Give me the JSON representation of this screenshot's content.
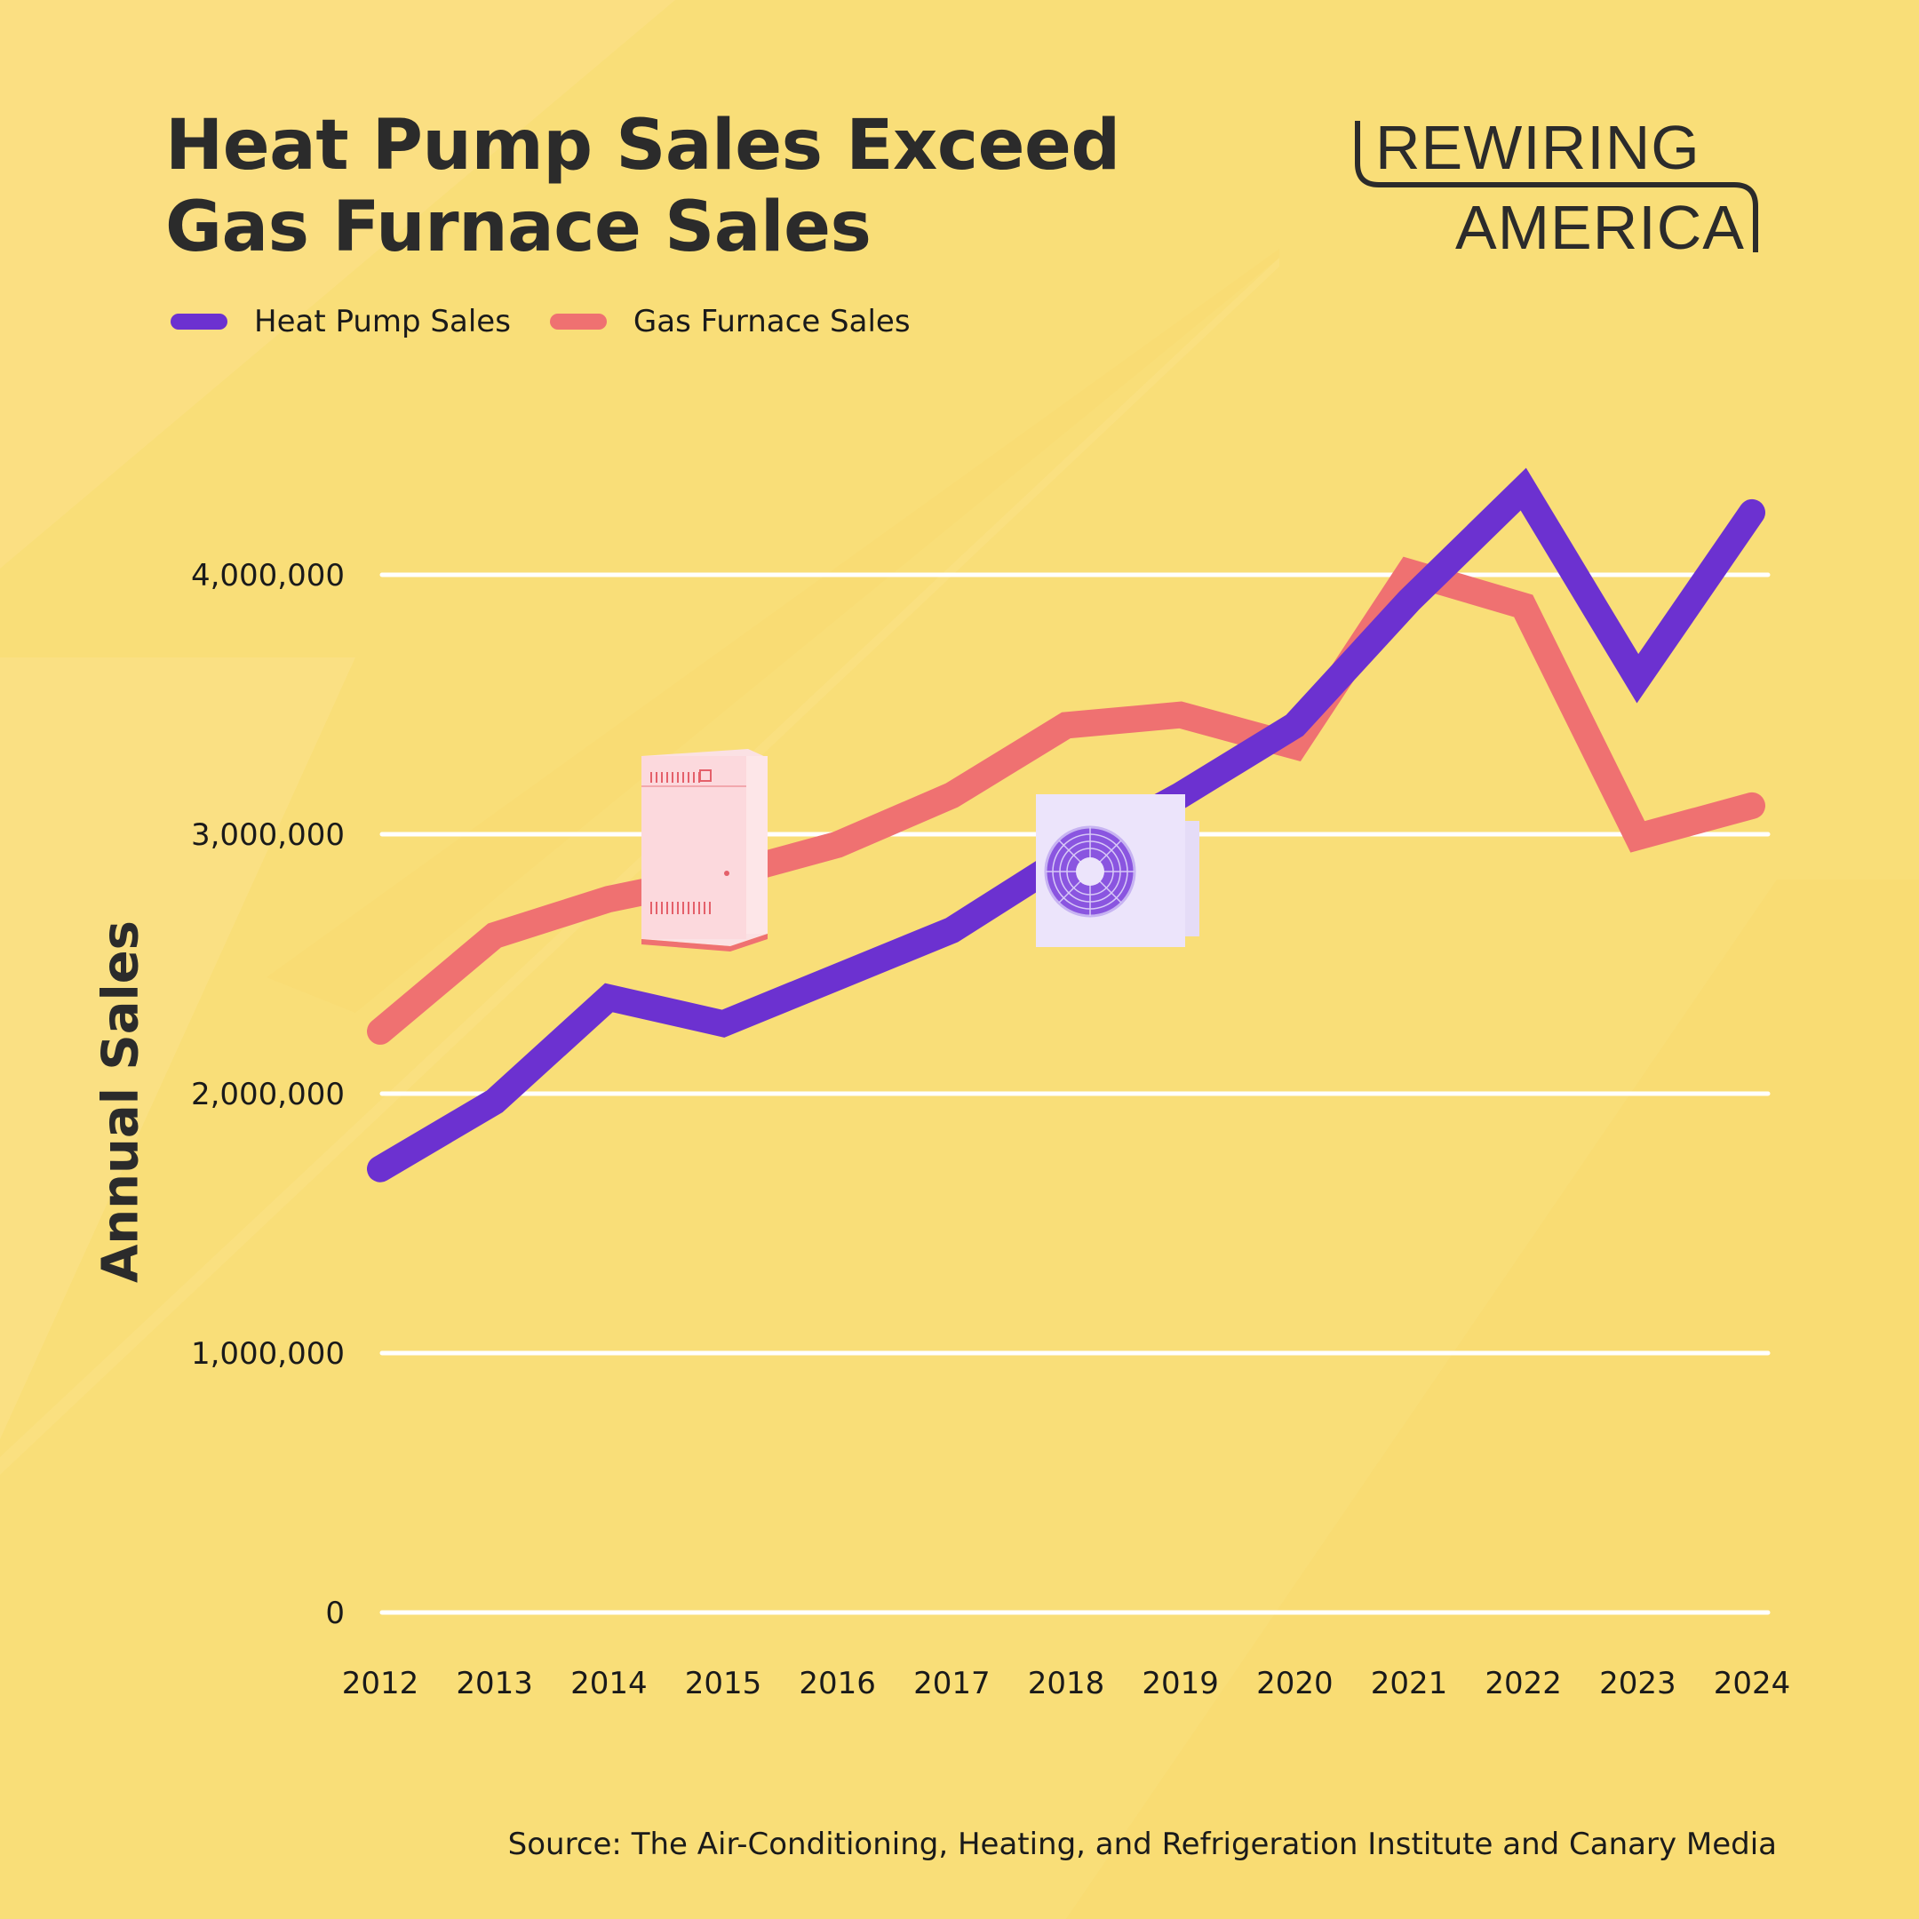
{
  "header": {
    "title_line1": "Heat Pump Sales Exceed",
    "title_line2": "Gas Furnace Sales"
  },
  "logo": {
    "line1": "REWIRING",
    "line2": "AMERICA"
  },
  "legend": [
    {
      "label": "Heat Pump Sales",
      "color": "#6c31d0"
    },
    {
      "label": "Gas Furnace Sales",
      "color": "#ef7171"
    }
  ],
  "source": "Source: The Air-Conditioning, Heating, and Refrigeration Institute and Canary Media",
  "illustrations": {
    "furnace": "gas-furnace-illustration",
    "heat_pump": "heat-pump-illustration"
  },
  "colors": {
    "background": "#f9de78",
    "heat_pump": "#6c31d0",
    "gas_furnace": "#ef7171",
    "gridline": "#ffffff",
    "text": "#2b2b2b"
  },
  "chart_data": {
    "type": "line",
    "title": "Heat Pump Sales Exceed Gas Furnace Sales",
    "xlabel": "",
    "ylabel": "Annual Sales",
    "x": [
      "2012",
      "2013",
      "2014",
      "2015",
      "2016",
      "2017",
      "2018",
      "2019",
      "2020",
      "2021",
      "2022",
      "2023",
      "2024"
    ],
    "ylim": [
      0,
      4000000
    ],
    "yticks": [
      0,
      1000000,
      2000000,
      3000000,
      4000000
    ],
    "ytick_labels": [
      "0",
      "1,000,000",
      "2,000,000",
      "3,000,000",
      "4,000,000"
    ],
    "grid": true,
    "legend_position": "top-left",
    "series": [
      {
        "name": "Heat Pump Sales",
        "color": "#6c31d0",
        "values": [
          1710000,
          1970000,
          2370000,
          2270000,
          2450000,
          2630000,
          2910000,
          3150000,
          3420000,
          3900000,
          4330000,
          3600000,
          4240000
        ]
      },
      {
        "name": "Gas Furnace Sales",
        "color": "#ef7171",
        "values": [
          2240000,
          2610000,
          2750000,
          2840000,
          2960000,
          3150000,
          3420000,
          3460000,
          3340000,
          4010000,
          3880000,
          2990000,
          3110000
        ]
      }
    ]
  }
}
